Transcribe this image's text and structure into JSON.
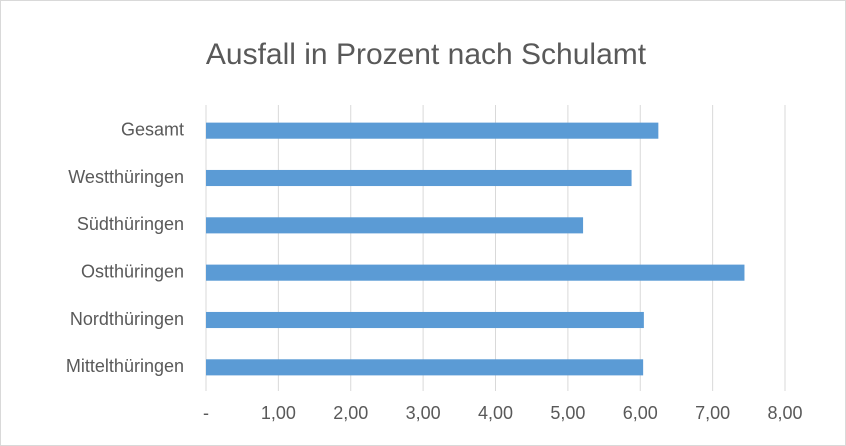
{
  "chart_data": {
    "type": "bar",
    "orientation": "horizontal",
    "title": "Ausfall in Prozent nach Schulamt",
    "categories": [
      "Gesamt",
      "Westthüringen",
      "Südthüringen",
      "Ostthüringen",
      "Nordthüringen",
      "Mittelthüringen"
    ],
    "values": [
      6.25,
      5.88,
      5.21,
      7.44,
      6.05,
      6.04
    ],
    "color": "#5b9bd5",
    "xlim": [
      0,
      8
    ],
    "xticks": [
      {
        "value": 0,
        "label": "-"
      },
      {
        "value": 1,
        "label": "1,00"
      },
      {
        "value": 2,
        "label": "2,00"
      },
      {
        "value": 3,
        "label": "3,00"
      },
      {
        "value": 4,
        "label": "4,00"
      },
      {
        "value": 5,
        "label": "5,00"
      },
      {
        "value": 6,
        "label": "6,00"
      },
      {
        "value": 7,
        "label": "7,00"
      },
      {
        "value": 8,
        "label": "8,00"
      }
    ],
    "grid": true
  }
}
